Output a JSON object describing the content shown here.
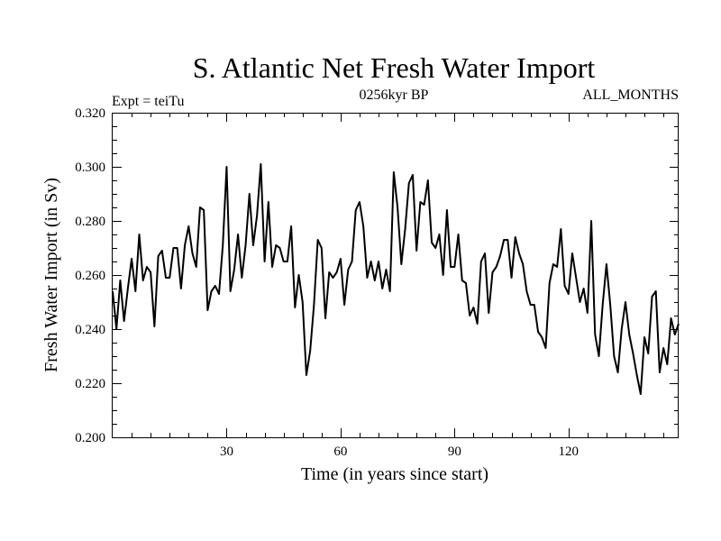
{
  "chart_data": {
    "type": "line",
    "title": "S. Atlantic Net Fresh Water Import",
    "subtitle_left": "Expt = teiTu",
    "subtitle_center": "0256kyr BP",
    "subtitle_right": "ALL_MONTHS",
    "xlabel": "Time (in years since start)",
    "ylabel": "Fresh Water Import (in Sv)",
    "xlim": [
      0,
      149
    ],
    "ylim": [
      0.2,
      0.32
    ],
    "x_ticks": [
      30,
      60,
      90,
      120
    ],
    "x_tick_labels": [
      "30",
      "60",
      "90",
      "120"
    ],
    "y_ticks": [
      0.2,
      0.22,
      0.24,
      0.26,
      0.28,
      0.3,
      0.32
    ],
    "y_tick_labels": [
      "0.200",
      "0.220",
      "0.240",
      "0.260",
      "0.280",
      "0.300",
      "0.320"
    ],
    "line_color": "#000000",
    "series": [
      {
        "name": "Net Fresh Water Import",
        "x_start": 0,
        "x_step": 1,
        "values": [
          0.254,
          0.24,
          0.258,
          0.243,
          0.255,
          0.266,
          0.254,
          0.275,
          0.258,
          0.263,
          0.261,
          0.241,
          0.267,
          0.269,
          0.259,
          0.259,
          0.27,
          0.27,
          0.255,
          0.271,
          0.278,
          0.268,
          0.263,
          0.285,
          0.284,
          0.247,
          0.254,
          0.256,
          0.253,
          0.271,
          0.3,
          0.254,
          0.262,
          0.275,
          0.259,
          0.271,
          0.29,
          0.271,
          0.282,
          0.301,
          0.265,
          0.287,
          0.263,
          0.271,
          0.27,
          0.265,
          0.265,
          0.278,
          0.248,
          0.26,
          0.25,
          0.223,
          0.232,
          0.249,
          0.273,
          0.27,
          0.244,
          0.261,
          0.259,
          0.261,
          0.266,
          0.249,
          0.262,
          0.265,
          0.284,
          0.287,
          0.278,
          0.259,
          0.265,
          0.258,
          0.265,
          0.255,
          0.262,
          0.254,
          0.298,
          0.285,
          0.264,
          0.277,
          0.294,
          0.297,
          0.269,
          0.287,
          0.286,
          0.295,
          0.272,
          0.27,
          0.275,
          0.26,
          0.284,
          0.263,
          0.263,
          0.275,
          0.258,
          0.257,
          0.245,
          0.248,
          0.242,
          0.265,
          0.268,
          0.246,
          0.261,
          0.263,
          0.267,
          0.273,
          0.273,
          0.259,
          0.274,
          0.268,
          0.264,
          0.254,
          0.249,
          0.249,
          0.239,
          0.237,
          0.233,
          0.257,
          0.264,
          0.263,
          0.277,
          0.256,
          0.253,
          0.268,
          0.259,
          0.25,
          0.255,
          0.246,
          0.28,
          0.238,
          0.23,
          0.249,
          0.264,
          0.249,
          0.23,
          0.224,
          0.24,
          0.25,
          0.238,
          0.231,
          0.223,
          0.216,
          0.237,
          0.231,
          0.252,
          0.254,
          0.224,
          0.233,
          0.227,
          0.244,
          0.238,
          0.242
        ]
      }
    ]
  }
}
